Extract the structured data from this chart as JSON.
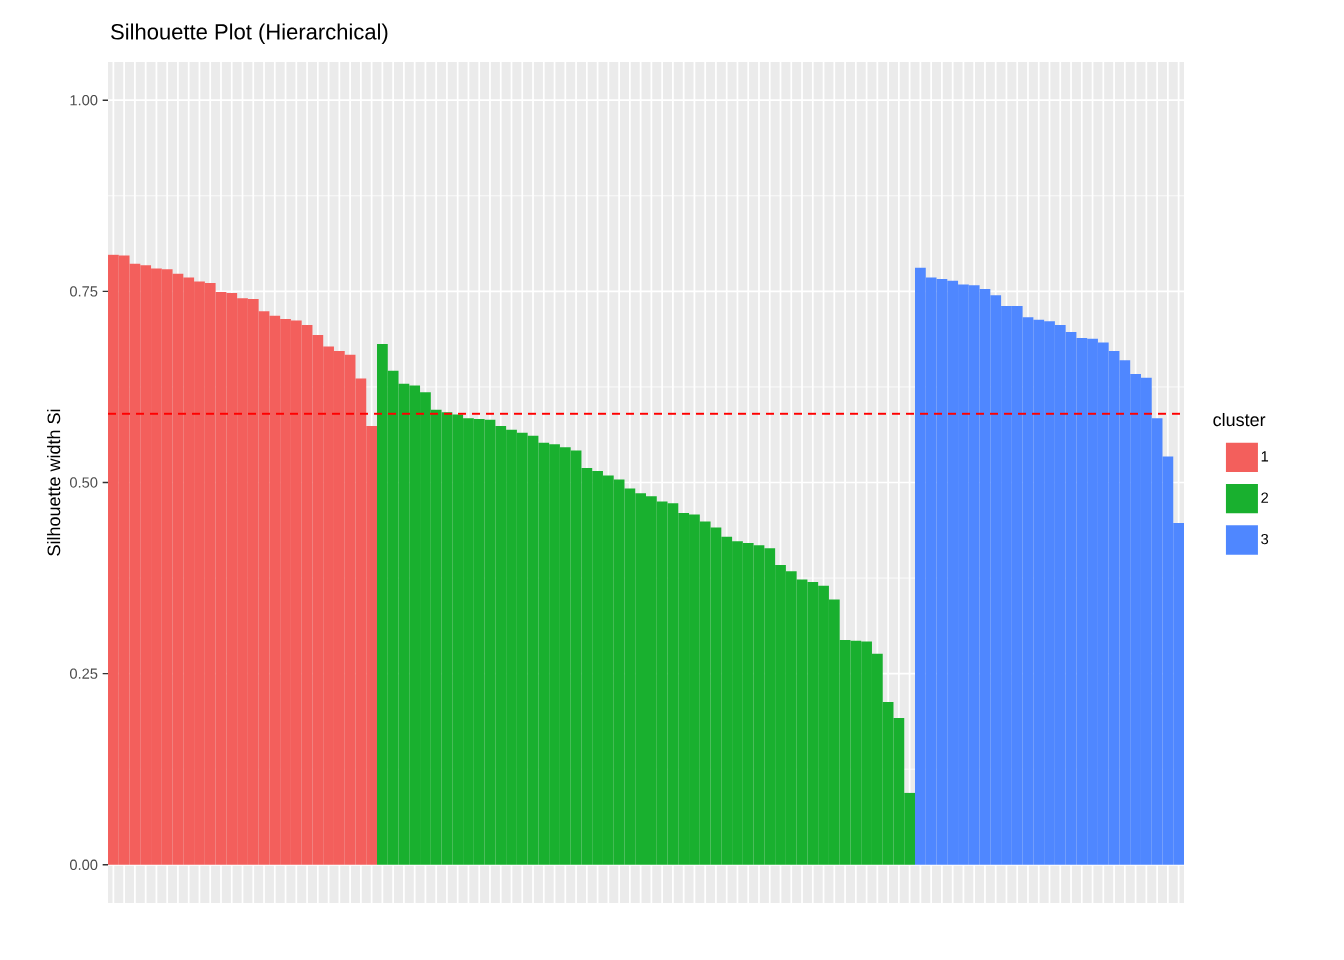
{
  "chart_data": {
    "type": "bar",
    "title": "Silhouette Plot (Hierarchical)",
    "ylabel": "Silhouette width Si",
    "legend_title": "cluster",
    "categories": [
      null,
      null,
      null,
      null,
      null,
      null,
      null,
      null,
      null,
      null,
      null,
      null,
      null,
      null,
      null,
      null,
      null,
      null,
      null,
      null,
      null,
      null,
      null,
      null,
      null,
      null,
      null,
      null,
      null,
      null,
      null,
      null,
      null,
      null,
      null,
      null,
      null,
      null,
      null,
      null,
      null,
      null,
      null,
      null,
      null,
      null,
      null,
      null,
      null,
      null,
      null,
      null,
      null,
      null,
      null,
      null,
      null,
      null,
      null,
      null,
      null,
      null,
      null,
      null,
      null,
      null,
      null,
      null,
      null,
      null,
      null,
      null,
      null,
      null,
      null,
      null,
      null,
      null,
      null,
      null,
      null,
      null,
      null,
      null,
      null,
      null,
      null,
      null,
      null,
      null,
      null,
      null,
      null,
      null,
      null,
      null,
      null,
      null,
      null,
      null
    ],
    "series": [
      {
        "name": "1",
        "color": "#f35f5c",
        "values": [
          0.798,
          0.797,
          0.786,
          0.784,
          0.78,
          0.779,
          0.773,
          0.768,
          0.763,
          0.761,
          0.749,
          0.748,
          0.741,
          0.74,
          0.724,
          0.718,
          0.714,
          0.712,
          0.706,
          0.693,
          0.678,
          0.672,
          0.667,
          0.636,
          0.574,
          null,
          null,
          null,
          null,
          null,
          null,
          null,
          null,
          null,
          null,
          null,
          null,
          null,
          null,
          null,
          null,
          null,
          null,
          null,
          null,
          null,
          null,
          null,
          null,
          null,
          null,
          null,
          null,
          null,
          null,
          null,
          null,
          null,
          null,
          null,
          null,
          null,
          null,
          null,
          null,
          null,
          null,
          null,
          null,
          null,
          null,
          null,
          null,
          null,
          null,
          null,
          null,
          null,
          null,
          null,
          null,
          null,
          null,
          null,
          null,
          null,
          null,
          null,
          null,
          null,
          null,
          null,
          null,
          null,
          null,
          null,
          null,
          null,
          null,
          null
        ]
      },
      {
        "name": "2",
        "color": "#19b02f",
        "values": [
          null,
          null,
          null,
          null,
          null,
          null,
          null,
          null,
          null,
          null,
          null,
          null,
          null,
          null,
          null,
          null,
          null,
          null,
          null,
          null,
          null,
          null,
          null,
          null,
          null,
          0.681,
          0.646,
          0.629,
          0.627,
          0.618,
          0.595,
          0.592,
          0.589,
          0.584,
          0.583,
          0.582,
          0.574,
          0.569,
          0.565,
          0.561,
          0.552,
          0.55,
          0.546,
          0.542,
          0.519,
          0.515,
          0.509,
          0.504,
          0.492,
          0.486,
          0.482,
          0.475,
          0.473,
          0.46,
          0.458,
          0.449,
          0.441,
          0.429,
          0.423,
          0.421,
          0.418,
          0.414,
          0.392,
          0.384,
          0.373,
          0.37,
          0.365,
          0.347,
          0.294,
          0.293,
          0.292,
          0.276,
          0.213,
          0.192,
          0.094,
          null,
          null,
          null,
          null,
          null,
          null,
          null,
          null,
          null,
          null,
          null,
          null,
          null,
          null,
          null,
          null,
          null,
          null,
          null,
          null,
          null,
          null,
          null,
          null,
          null
        ]
      },
      {
        "name": "3",
        "color": "#4f87ff",
        "values": [
          null,
          null,
          null,
          null,
          null,
          null,
          null,
          null,
          null,
          null,
          null,
          null,
          null,
          null,
          null,
          null,
          null,
          null,
          null,
          null,
          null,
          null,
          null,
          null,
          null,
          null,
          null,
          null,
          null,
          null,
          null,
          null,
          null,
          null,
          null,
          null,
          null,
          null,
          null,
          null,
          null,
          null,
          null,
          null,
          null,
          null,
          null,
          null,
          null,
          null,
          null,
          null,
          null,
          null,
          null,
          null,
          null,
          null,
          null,
          null,
          null,
          null,
          null,
          null,
          null,
          null,
          null,
          null,
          null,
          null,
          null,
          null,
          null,
          null,
          null,
          0.781,
          0.768,
          0.766,
          0.764,
          0.759,
          0.758,
          0.753,
          0.745,
          0.731,
          0.731,
          0.716,
          0.713,
          0.711,
          0.706,
          0.697,
          0.689,
          0.688,
          0.683,
          0.672,
          0.66,
          0.642,
          0.637,
          0.584,
          0.534,
          0.447
        ]
      }
    ],
    "ylim": [
      -0.05,
      1.05
    ],
    "yticks": [
      {
        "value": 0,
        "label": "0.00"
      },
      {
        "value": 0.25,
        "label": "0.25"
      },
      {
        "value": 0.5,
        "label": "0.50"
      },
      {
        "value": 0.75,
        "label": "0.75"
      },
      {
        "value": 1,
        "label": "1.00"
      }
    ],
    "grid": true,
    "legend": "right",
    "ref_lines": [
      {
        "axis": "y",
        "value": 0.59,
        "color": "#ff0000",
        "line_style": "dashed"
      }
    ]
  }
}
